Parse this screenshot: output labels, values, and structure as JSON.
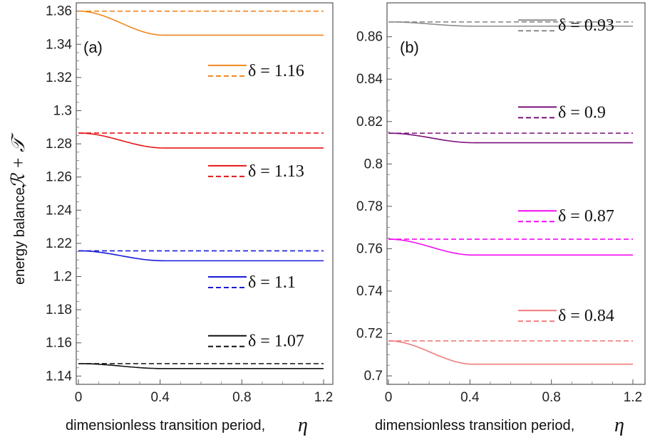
{
  "axes": {
    "xlabel": "dimensionless transition period,",
    "xlabel_symbol": "η",
    "ylabel": "energy balance,",
    "ylabel_symbol": "ℛ + 𝒯"
  },
  "chart_data": [
    {
      "type": "line",
      "panel": "(a)",
      "xlim": [
        0,
        1.2
      ],
      "ylim": [
        1.135,
        1.365
      ],
      "xticks": [
        "0",
        "0.4",
        "0.8",
        "1.2"
      ],
      "xtick_values": [
        0,
        0.4,
        0.8,
        1.2
      ],
      "yticks": [
        "1.14",
        "1.16",
        "1.18",
        "1.2",
        "1.22",
        "1.24",
        "1.26",
        "1.28",
        "1.3",
        "1.32",
        "1.34",
        "1.36"
      ],
      "ytick_values": [
        1.14,
        1.16,
        1.18,
        1.2,
        1.22,
        1.24,
        1.26,
        1.28,
        1.3,
        1.32,
        1.34,
        1.36
      ],
      "legend_placement": "right, beside each curve",
      "series": [
        {
          "label": "δ = 1.16",
          "color": "#f0861c",
          "start": 1.36,
          "plateau": 1.3455,
          "dashed": 1.36,
          "legend_y": 1.323
        },
        {
          "label": "δ = 1.13",
          "color": "#e51515",
          "start": 1.2865,
          "plateau": 1.2775,
          "dashed": 1.2865,
          "legend_y": 1.2625
        },
        {
          "label": "δ = 1.1",
          "color": "#1a1ad6",
          "start": 1.2155,
          "plateau": 1.2095,
          "dashed": 1.2155,
          "legend_y": 1.1955
        },
        {
          "label": "δ = 1.07",
          "color": "#111111",
          "start": 1.1475,
          "plateau": 1.1445,
          "dashed": 1.1475,
          "legend_y": 1.16
        }
      ]
    },
    {
      "type": "line",
      "panel": "(b)",
      "xlim": [
        0,
        1.2
      ],
      "ylim": [
        0.696,
        0.876
      ],
      "xticks": [
        "0",
        "0.4",
        "0.8",
        "1.2"
      ],
      "xtick_values": [
        0,
        0.4,
        0.8,
        1.2
      ],
      "yticks": [
        "0.7",
        "0.72",
        "0.74",
        "0.76",
        "0.78",
        "0.8",
        "0.82",
        "0.84",
        "0.86"
      ],
      "ytick_values": [
        0.7,
        0.72,
        0.74,
        0.76,
        0.78,
        0.8,
        0.82,
        0.84,
        0.86
      ],
      "legend_placement": "right, beside each curve",
      "series": [
        {
          "label": "δ = 0.93",
          "color": "#8c8c8c",
          "start": 0.867,
          "plateau": 0.865,
          "dashed": 0.867,
          "legend_y": 0.8645
        },
        {
          "label": "δ = 0.9",
          "color": "#7a0f7a",
          "start": 0.8145,
          "plateau": 0.81,
          "dashed": 0.8145,
          "legend_y": 0.8235
        },
        {
          "label": "δ = 0.87",
          "color": "#f20af2",
          "start": 0.7645,
          "plateau": 0.757,
          "dashed": 0.7645,
          "legend_y": 0.7745
        },
        {
          "label": "δ = 0.84",
          "color": "#f07b7b",
          "start": 0.7165,
          "plateau": 0.7055,
          "dashed": 0.7165,
          "legend_y": 0.7275
        }
      ]
    }
  ]
}
